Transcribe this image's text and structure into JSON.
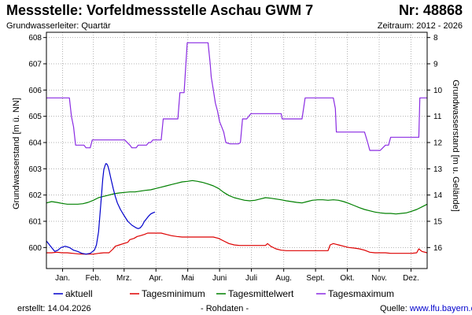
{
  "header": {
    "title": "Messstelle: Vorfeldmessstelle Aschau GWM 7",
    "number": "Nr: 48868",
    "aquifer": "Grundwasserleiter: Quartär",
    "period": "Zeitraum: 2012 - 2026"
  },
  "footer": {
    "created": "erstellt:  14.04.2026",
    "note": "- Rohdaten -",
    "source_label": "Quelle: ",
    "source_link": "www.lfu.bayern.de"
  },
  "colors": {
    "aktuell": "#0000cc",
    "min": "#dd0000",
    "mean": "#008000",
    "max": "#8a2be2",
    "grid": "#b0b0b0"
  },
  "chart_data": {
    "type": "line",
    "title": "",
    "ylabel": "Grundwasserstand [m ü. NN]",
    "y2label": "Grundwasserstand [m u. Gelände]",
    "ylim": [
      599.2,
      608.2
    ],
    "y_ticks": [
      600,
      601,
      602,
      603,
      604,
      605,
      606,
      607,
      608
    ],
    "y2_ticks": [
      8,
      9,
      10,
      11,
      12,
      13,
      14,
      15,
      16
    ],
    "y2_ref": 616,
    "xlim": [
      0,
      365
    ],
    "x_tick_labels": [
      "Jan.",
      "Feb.",
      "Mrz.",
      "Apr.",
      "Mai",
      "Juni",
      "Juli",
      "Aug.",
      "Sept.",
      "Okt.",
      "Nov.",
      "Dez."
    ],
    "x_tick_positions": [
      15.5,
      45,
      74.5,
      105,
      135.5,
      166,
      196.5,
      227.5,
      258,
      288.5,
      319,
      349.5
    ],
    "grid": true,
    "legend_position": "bottom",
    "series": [
      {
        "name": "aktuell",
        "color": "#0000cc",
        "x": [
          0,
          4,
          8,
          11,
          14,
          18,
          22,
          26,
          30,
          34,
          38,
          42,
          46,
          48,
          50,
          52,
          54,
          55,
          56,
          57,
          58,
          59,
          60,
          62,
          64,
          66,
          68,
          71,
          74,
          78,
          82,
          86,
          88,
          90,
          92,
          94,
          96,
          98,
          100,
          102,
          104
        ],
        "values": [
          600.25,
          600.05,
          599.85,
          599.9,
          600.0,
          600.05,
          600.0,
          599.9,
          599.85,
          599.78,
          599.75,
          599.78,
          599.9,
          600.1,
          600.6,
          601.6,
          602.6,
          602.95,
          603.1,
          603.2,
          603.18,
          603.1,
          602.95,
          602.6,
          602.25,
          601.95,
          601.7,
          601.45,
          601.25,
          601.0,
          600.85,
          600.75,
          600.72,
          600.75,
          600.85,
          601.0,
          601.1,
          601.2,
          601.28,
          601.32,
          601.35
        ]
      },
      {
        "name": "Tagesminimum",
        "color": "#dd0000",
        "x": [
          0,
          5,
          10,
          15,
          20,
          25,
          30,
          35,
          40,
          45,
          50,
          55,
          60,
          64,
          66,
          70,
          74,
          78,
          80,
          84,
          87,
          90,
          94,
          97,
          100,
          105,
          110,
          115,
          120,
          125,
          130,
          135,
          140,
          145,
          150,
          155,
          160,
          165,
          170,
          175,
          180,
          185,
          190,
          195,
          200,
          205,
          210,
          212,
          215,
          220,
          225,
          230,
          235,
          240,
          245,
          250,
          255,
          260,
          265,
          270,
          272,
          275,
          278,
          280,
          285,
          290,
          295,
          300,
          305,
          310,
          315,
          320,
          325,
          330,
          335,
          340,
          345,
          350,
          355,
          357,
          360,
          365
        ],
        "values": [
          599.8,
          599.8,
          599.82,
          599.8,
          599.8,
          599.78,
          599.76,
          599.75,
          599.75,
          599.75,
          599.78,
          599.8,
          599.8,
          599.95,
          600.05,
          600.1,
          600.15,
          600.2,
          600.3,
          600.35,
          600.42,
          600.45,
          600.5,
          600.55,
          600.55,
          600.55,
          600.55,
          600.5,
          600.45,
          600.42,
          600.4,
          600.4,
          600.4,
          600.4,
          600.4,
          600.4,
          600.4,
          600.35,
          600.25,
          600.15,
          600.1,
          600.08,
          600.08,
          600.08,
          600.08,
          600.08,
          600.08,
          600.15,
          600.05,
          599.95,
          599.9,
          599.88,
          599.88,
          599.88,
          599.88,
          599.88,
          599.88,
          599.88,
          599.88,
          599.88,
          600.1,
          600.15,
          600.12,
          600.1,
          600.05,
          600.0,
          599.98,
          599.95,
          599.9,
          599.82,
          599.8,
          599.8,
          599.8,
          599.78,
          599.78,
          599.78,
          599.78,
          599.78,
          599.8,
          599.95,
          599.85,
          599.8
        ]
      },
      {
        "name": "Tagesmittelwert",
        "color": "#008000",
        "x": [
          0,
          5,
          10,
          15,
          20,
          25,
          30,
          35,
          40,
          45,
          50,
          55,
          60,
          65,
          70,
          75,
          80,
          85,
          90,
          95,
          100,
          105,
          110,
          115,
          120,
          125,
          130,
          135,
          140,
          145,
          150,
          155,
          160,
          165,
          170,
          175,
          180,
          185,
          190,
          195,
          200,
          205,
          210,
          215,
          220,
          225,
          230,
          235,
          240,
          245,
          250,
          255,
          260,
          265,
          270,
          275,
          280,
          285,
          290,
          295,
          300,
          305,
          310,
          315,
          320,
          325,
          330,
          335,
          340,
          345,
          350,
          355,
          360,
          365
        ],
        "values": [
          601.7,
          601.75,
          601.72,
          601.68,
          601.65,
          601.65,
          601.65,
          601.67,
          601.72,
          601.8,
          601.9,
          601.95,
          602.0,
          602.05,
          602.08,
          602.1,
          602.12,
          602.12,
          602.15,
          602.18,
          602.2,
          602.25,
          602.3,
          602.35,
          602.4,
          602.45,
          602.5,
          602.52,
          602.55,
          602.52,
          602.48,
          602.42,
          602.35,
          602.25,
          602.1,
          601.98,
          601.9,
          601.85,
          601.8,
          601.78,
          601.8,
          601.85,
          601.9,
          601.88,
          601.85,
          601.82,
          601.78,
          601.75,
          601.72,
          601.7,
          601.75,
          601.8,
          601.82,
          601.82,
          601.8,
          601.82,
          601.8,
          601.75,
          601.68,
          601.6,
          601.52,
          601.45,
          601.4,
          601.35,
          601.32,
          601.3,
          601.3,
          601.28,
          601.3,
          601.32,
          601.38,
          601.45,
          601.55,
          601.65
        ]
      },
      {
        "name": "Tagesmaximum",
        "color": "#8a2be2",
        "x": [
          0,
          20,
          22,
          24,
          26,
          28,
          36,
          38,
          42,
          44,
          50,
          55,
          60,
          65,
          70,
          75,
          80,
          82,
          86,
          88,
          92,
          96,
          98,
          100,
          102,
          104,
          110,
          112,
          118,
          120,
          126,
          128,
          132,
          135,
          155,
          157,
          158,
          160,
          162,
          164,
          166,
          170,
          172,
          176,
          180,
          184,
          186,
          188,
          192,
          196,
          198,
          200,
          220,
          222,
          225,
          226,
          230,
          245,
          248,
          252,
          256,
          258,
          260,
          272,
          275,
          277,
          278,
          280,
          282,
          300,
          305,
          308,
          310,
          318,
          320,
          325,
          328,
          330,
          350,
          352,
          357,
          358,
          365
        ],
        "values": [
          605.7,
          605.7,
          605.7,
          605.0,
          604.6,
          603.9,
          603.9,
          603.8,
          603.8,
          604.1,
          604.1,
          604.1,
          604.1,
          604.1,
          604.1,
          604.1,
          603.9,
          603.8,
          603.8,
          603.9,
          603.9,
          603.9,
          604.0,
          604.0,
          604.1,
          604.1,
          604.1,
          604.9,
          604.9,
          604.9,
          604.9,
          605.9,
          605.9,
          607.8,
          607.8,
          607.0,
          606.5,
          606.0,
          605.5,
          605.2,
          604.8,
          604.4,
          604.0,
          603.95,
          603.95,
          603.95,
          604.0,
          604.9,
          604.9,
          605.1,
          605.1,
          605.1,
          605.1,
          605.1,
          605.1,
          604.9,
          604.9,
          604.9,
          605.7,
          605.7,
          605.7,
          605.7,
          605.7,
          605.7,
          605.7,
          605.3,
          604.4,
          604.4,
          604.4,
          604.4,
          604.4,
          604.0,
          603.7,
          603.7,
          603.7,
          603.9,
          603.9,
          604.2,
          604.2,
          604.2,
          604.2,
          605.7,
          605.7
        ]
      }
    ]
  }
}
